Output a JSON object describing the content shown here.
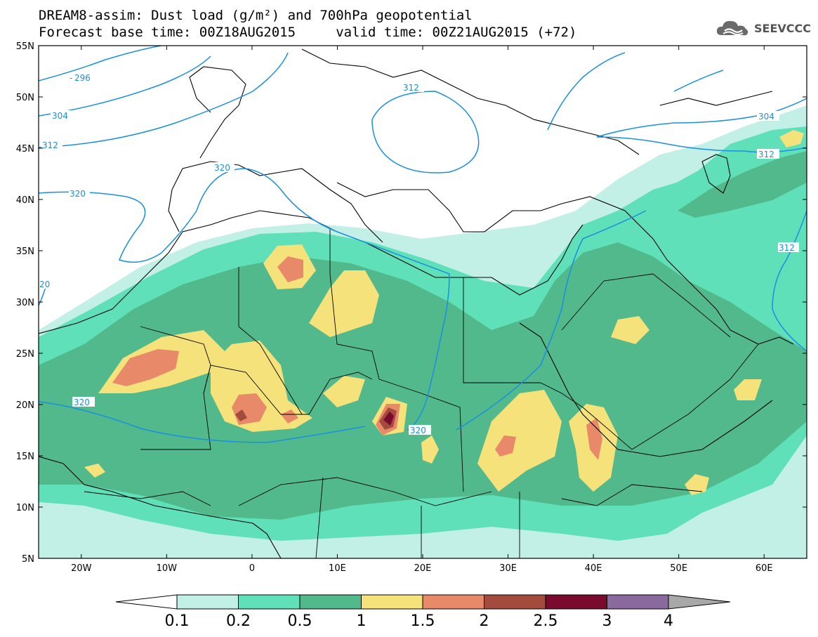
{
  "title": {
    "line1": "DREAM8-assim: Dust load (g/m²) and 700hPa geopotential",
    "line2": "Forecast base time: 00Z18AUG2015     valid time: 00Z21AUG2015 (+72)"
  },
  "logo": {
    "text": "SEEVCCC",
    "icon": "cloud-logo-icon"
  },
  "map": {
    "lon_range": [
      -25,
      65
    ],
    "lat_range": [
      5,
      55
    ],
    "x_ticks": [
      "20W",
      "10W",
      "0",
      "10E",
      "20E",
      "30E",
      "40E",
      "50E",
      "60E"
    ],
    "y_ticks": [
      "55N",
      "50N",
      "45N",
      "40N",
      "35N",
      "30N",
      "25N",
      "20N",
      "15N",
      "10N",
      "5N"
    ],
    "contour_color": "#1a8fe0",
    "contour_labels": [
      "296",
      "304",
      "312",
      "320",
      "320",
      "20",
      "320",
      "320",
      "312",
      "304",
      "312",
      "312"
    ]
  },
  "colorbar": {
    "labels": [
      "0.1",
      "0.2",
      "0.5",
      "1",
      "1.5",
      "2",
      "2.5",
      "3",
      "4"
    ],
    "colors": [
      "#c2efe6",
      "#5fe0b8",
      "#52b98c",
      "#f5e27a",
      "#e8896a",
      "#a34b3d",
      "#7a0a2e",
      "#8a6a9e",
      "#a8a8a8"
    ]
  }
}
